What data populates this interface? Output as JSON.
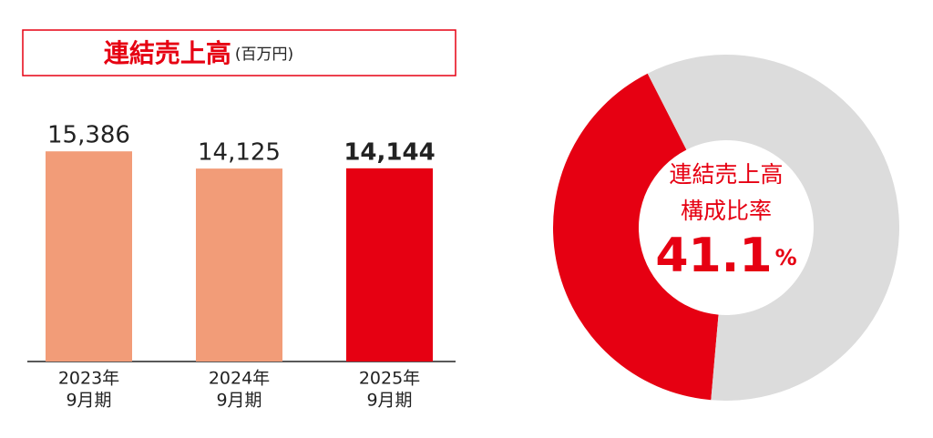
{
  "chart_data": [
    {
      "type": "bar",
      "title": "連結売上高",
      "subtitle": "(百万円)",
      "categories": [
        [
          "2023年",
          "9月期"
        ],
        [
          "2024年",
          "9月期"
        ],
        [
          "2025年",
          "9月期"
        ]
      ],
      "values": [
        15386,
        14125,
        14144
      ],
      "value_labels": [
        "15,386",
        "14,125",
        "14,144"
      ],
      "colors": [
        "#f29c78",
        "#f29c78",
        "#e60012"
      ],
      "ylim": [
        0,
        18000
      ]
    },
    {
      "type": "pie",
      "donut": true,
      "center_labels": [
        "連結売上高",
        "構成比率"
      ],
      "values": [
        41.1,
        58.9
      ],
      "unit": "%",
      "colors": [
        "#e60012",
        "#dcdcdc"
      ]
    }
  ]
}
